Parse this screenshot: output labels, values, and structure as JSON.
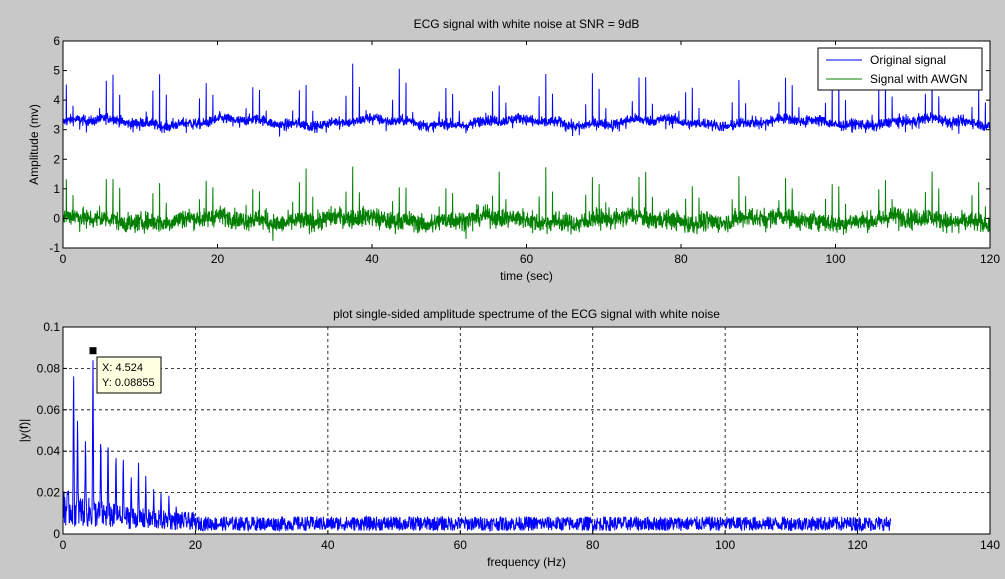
{
  "colors": {
    "figure_bg": "#c8c8c8",
    "axes_bg": "#ffffff",
    "original": "#0000ff",
    "noisy": "#007f00",
    "spectrum": "#0000ff",
    "datatip_bg": "#ffffe1"
  },
  "chart_data": [
    {
      "type": "line",
      "title": "ECG signal with white noise at SNR = 9dB",
      "xlabel": "time (sec)",
      "ylabel": "Amplitude (mv)",
      "xlim": [
        0,
        120
      ],
      "ylim": [
        -1,
        6
      ],
      "xticks": [
        "0",
        "20",
        "40",
        "60",
        "80",
        "100",
        "120"
      ],
      "yticks": [
        "-1",
        "0",
        "1",
        "2",
        "3",
        "4",
        "5",
        "6"
      ],
      "grid": false,
      "legend_position": "top-right",
      "series": [
        {
          "name": "Original signal",
          "color": "#0000ff",
          "baseline": 3.25,
          "noise_amplitude": 0.18,
          "peak_height": 1.8,
          "beats_per_second": 1.16
        },
        {
          "name": "Signal with AWGN",
          "color": "#007f00",
          "baseline": -0.05,
          "noise_amplitude": 0.33,
          "peak_height": 1.75,
          "beats_per_second": 1.16
        }
      ]
    },
    {
      "type": "line",
      "title": "plot single-sided amplitude spectrume of the ECG signal with white noise",
      "xlabel": "frequency (Hz)",
      "ylabel": "|y(f)|",
      "xlim": [
        0,
        140
      ],
      "ylim": [
        0,
        0.1
      ],
      "xticks": [
        "0",
        "20",
        "40",
        "60",
        "80",
        "100",
        "120",
        "140"
      ],
      "yticks": [
        "0",
        "0.02",
        "0.04",
        "0.06",
        "0.08",
        "0.1"
      ],
      "grid": true,
      "series": [
        {
          "color": "#0000ff",
          "fmax": 125,
          "peaks": [
            {
              "x": 1.6,
              "y": 0.085
            },
            {
              "x": 2.2,
              "y": 0.06
            },
            {
              "x": 3.4,
              "y": 0.05
            },
            {
              "x": 4.524,
              "y": 0.08855
            },
            {
              "x": 5.7,
              "y": 0.052
            },
            {
              "x": 6.8,
              "y": 0.05
            },
            {
              "x": 8.0,
              "y": 0.043
            },
            {
              "x": 9.1,
              "y": 0.04
            },
            {
              "x": 10.3,
              "y": 0.03
            },
            {
              "x": 11.4,
              "y": 0.036
            },
            {
              "x": 12.5,
              "y": 0.028
            },
            {
              "x": 13.7,
              "y": 0.022
            },
            {
              "x": 14.8,
              "y": 0.021
            },
            {
              "x": 16.0,
              "y": 0.02
            },
            {
              "x": 17.1,
              "y": 0.015
            }
          ],
          "floor": 0.005
        }
      ],
      "datatip": {
        "x": 4.524,
        "y": 0.08855,
        "x_label": "X: 4.524",
        "y_label": "Y: 0.08855"
      }
    }
  ]
}
